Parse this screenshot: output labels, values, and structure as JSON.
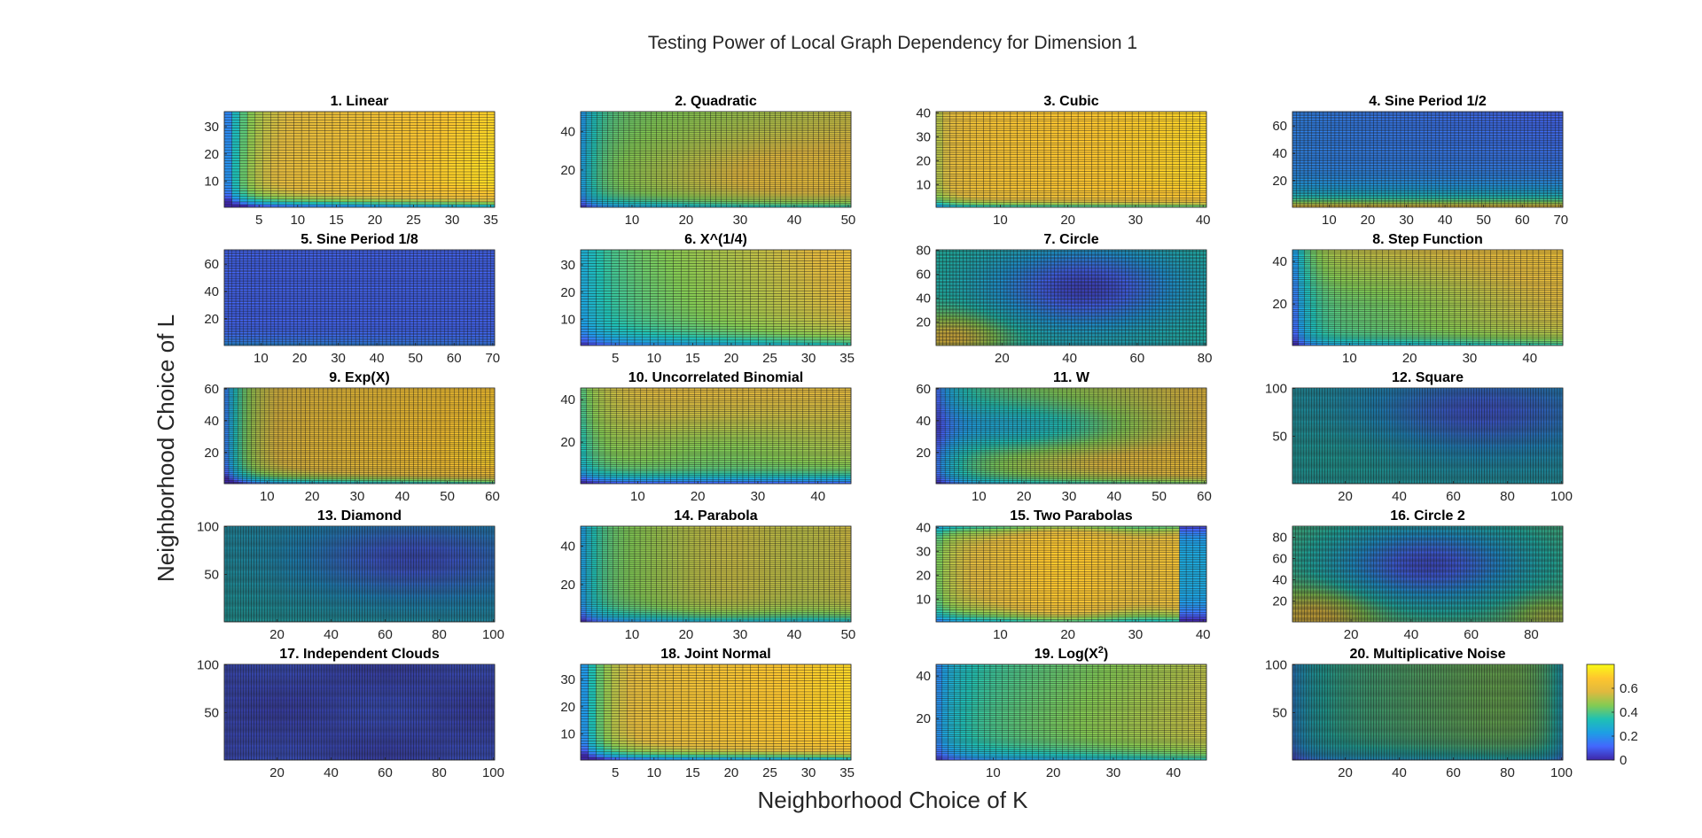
{
  "figure": {
    "title": "Testing Power of Local Graph Dependency for Dimension 1",
    "xlabel": "Neighborhood Choice of K",
    "ylabel": "Neighborhood Choice of L"
  },
  "colorbar": {
    "ticks": [
      "0",
      "0.2",
      "0.4",
      "0.6"
    ],
    "tick_values": [
      0,
      0.2,
      0.4,
      0.6
    ],
    "range": [
      0,
      0.8
    ],
    "colormap": [
      "#3e26a8",
      "#4367fd",
      "#1d9fe4",
      "#1fc1b3",
      "#83cb53",
      "#e0b93e",
      "#fec62e",
      "#f9fb15"
    ]
  },
  "chart_data": [
    {
      "type": "heatmap",
      "title": "1. Linear",
      "title_sup": "",
      "xlim": [
        1,
        35
      ],
      "ylim": [
        1,
        35
      ],
      "xticks": [
        5,
        10,
        15,
        20,
        25,
        30,
        35
      ],
      "yticks": [
        10,
        20,
        30
      ],
      "pattern": "linear"
    },
    {
      "type": "heatmap",
      "title": "2. Quadratic",
      "title_sup": "",
      "xlim": [
        1,
        50
      ],
      "ylim": [
        1,
        50
      ],
      "xticks": [
        10,
        20,
        30,
        40,
        50
      ],
      "yticks": [
        20,
        40
      ],
      "pattern": "quadratic"
    },
    {
      "type": "heatmap",
      "title": "3. Cubic",
      "title_sup": "",
      "xlim": [
        1,
        40
      ],
      "ylim": [
        1,
        40
      ],
      "xticks": [
        10,
        20,
        30,
        40
      ],
      "yticks": [
        10,
        20,
        30,
        40
      ],
      "pattern": "cubic"
    },
    {
      "type": "heatmap",
      "title": "4. Sine Period 1/2",
      "title_sup": "",
      "xlim": [
        1,
        70
      ],
      "ylim": [
        1,
        70
      ],
      "xticks": [
        10,
        20,
        30,
        40,
        50,
        60,
        70
      ],
      "yticks": [
        20,
        40,
        60
      ],
      "pattern": "sine2"
    },
    {
      "type": "heatmap",
      "title": "5. Sine Period 1/8",
      "title_sup": "",
      "xlim": [
        1,
        70
      ],
      "ylim": [
        1,
        70
      ],
      "xticks": [
        10,
        20,
        30,
        40,
        50,
        60,
        70
      ],
      "yticks": [
        20,
        40,
        60
      ],
      "pattern": "sine8"
    },
    {
      "type": "heatmap",
      "title": "6. X^(1/4)",
      "title_sup": "",
      "xlim": [
        1,
        35
      ],
      "ylim": [
        1,
        35
      ],
      "xticks": [
        5,
        10,
        15,
        20,
        25,
        30,
        35
      ],
      "yticks": [
        10,
        20,
        30
      ],
      "pattern": "xquarter"
    },
    {
      "type": "heatmap",
      "title": "7. Circle",
      "title_sup": "",
      "xlim": [
        1,
        80
      ],
      "ylim": [
        1,
        80
      ],
      "xticks": [
        20,
        40,
        60,
        80
      ],
      "yticks": [
        20,
        40,
        60,
        80
      ],
      "pattern": "circle"
    },
    {
      "type": "heatmap",
      "title": "8. Step Function",
      "title_sup": "",
      "xlim": [
        1,
        45
      ],
      "ylim": [
        1,
        45
      ],
      "xticks": [
        10,
        20,
        30,
        40
      ],
      "yticks": [
        20,
        40
      ],
      "pattern": "step"
    },
    {
      "type": "heatmap",
      "title": "9. Exp(X)",
      "title_sup": "",
      "xlim": [
        1,
        60
      ],
      "ylim": [
        1,
        60
      ],
      "xticks": [
        10,
        20,
        30,
        40,
        50,
        60
      ],
      "yticks": [
        20,
        40,
        60
      ],
      "pattern": "exp"
    },
    {
      "type": "heatmap",
      "title": "10. Uncorrelated Binomial",
      "title_sup": "",
      "xlim": [
        1,
        45
      ],
      "ylim": [
        1,
        45
      ],
      "xticks": [
        10,
        20,
        30,
        40
      ],
      "yticks": [
        20,
        40
      ],
      "pattern": "binomial"
    },
    {
      "type": "heatmap",
      "title": "11. W",
      "title_sup": "",
      "xlim": [
        1,
        60
      ],
      "ylim": [
        1,
        60
      ],
      "xticks": [
        10,
        20,
        30,
        40,
        50,
        60
      ],
      "yticks": [
        20,
        40,
        60
      ],
      "pattern": "w"
    },
    {
      "type": "heatmap",
      "title": "12. Square",
      "title_sup": "",
      "xlim": [
        1,
        100
      ],
      "ylim": [
        1,
        100
      ],
      "xticks": [
        20,
        40,
        60,
        80,
        100
      ],
      "yticks": [
        50,
        100
      ],
      "pattern": "square"
    },
    {
      "type": "heatmap",
      "title": "13. Diamond",
      "title_sup": "",
      "xlim": [
        1,
        100
      ],
      "ylim": [
        1,
        100
      ],
      "xticks": [
        20,
        40,
        60,
        80,
        100
      ],
      "yticks": [
        50,
        100
      ],
      "pattern": "diamond"
    },
    {
      "type": "heatmap",
      "title": "14. Parabola",
      "title_sup": "",
      "xlim": [
        1,
        50
      ],
      "ylim": [
        1,
        50
      ],
      "xticks": [
        10,
        20,
        30,
        40,
        50
      ],
      "yticks": [
        20,
        40
      ],
      "pattern": "parabola"
    },
    {
      "type": "heatmap",
      "title": "15. Two Parabolas",
      "title_sup": "",
      "xlim": [
        1,
        40
      ],
      "ylim": [
        1,
        40
      ],
      "xticks": [
        10,
        20,
        30,
        40
      ],
      "yticks": [
        10,
        20,
        30,
        40
      ],
      "pattern": "twoparab"
    },
    {
      "type": "heatmap",
      "title": "16. Circle 2",
      "title_sup": "",
      "xlim": [
        1,
        90
      ],
      "ylim": [
        1,
        90
      ],
      "xticks": [
        20,
        40,
        60,
        80
      ],
      "yticks": [
        20,
        40,
        60,
        80
      ],
      "pattern": "circle2"
    },
    {
      "type": "heatmap",
      "title": "17. Independent Clouds",
      "title_sup": "",
      "xlim": [
        1,
        100
      ],
      "ylim": [
        1,
        100
      ],
      "xticks": [
        20,
        40,
        60,
        80,
        100
      ],
      "yticks": [
        50,
        100
      ],
      "pattern": "clouds"
    },
    {
      "type": "heatmap",
      "title": "18. Joint Normal",
      "title_sup": "",
      "xlim": [
        1,
        35
      ],
      "ylim": [
        1,
        35
      ],
      "xticks": [
        5,
        10,
        15,
        20,
        25,
        30,
        35
      ],
      "yticks": [
        10,
        20,
        30
      ],
      "pattern": "jointnormal"
    },
    {
      "type": "heatmap",
      "title": "19. Log(X",
      "title_sup": "2",
      "title_after": ")",
      "xlim": [
        1,
        45
      ],
      "ylim": [
        1,
        45
      ],
      "xticks": [
        10,
        20,
        30,
        40
      ],
      "yticks": [
        20,
        40
      ],
      "pattern": "log"
    },
    {
      "type": "heatmap",
      "title": "20. Multiplicative Noise",
      "title_sup": "",
      "xlim": [
        1,
        100
      ],
      "ylim": [
        1,
        100
      ],
      "xticks": [
        20,
        40,
        60,
        80,
        100
      ],
      "yticks": [
        50,
        100
      ],
      "pattern": "mult"
    }
  ]
}
